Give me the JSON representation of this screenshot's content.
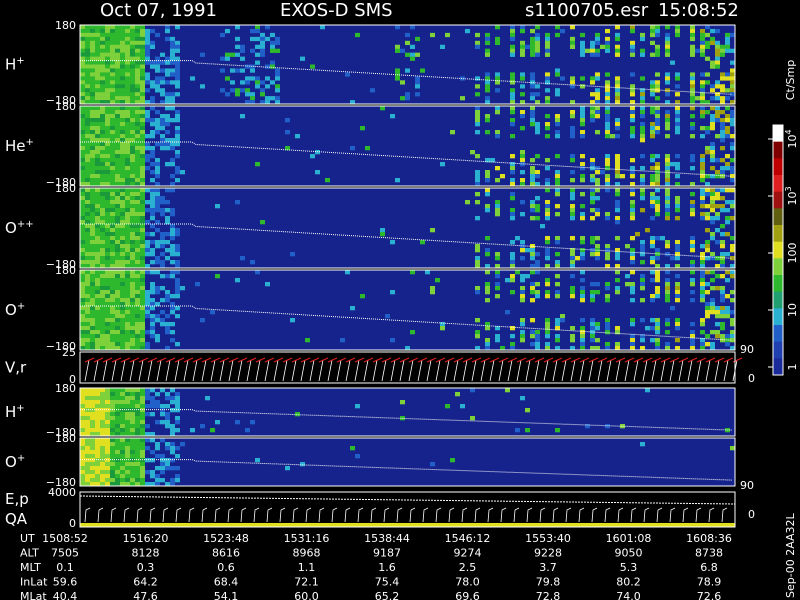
{
  "header": {
    "date": "Oct 07, 1991",
    "instrument": "EXOS-D SMS",
    "file": "s1100705.esr",
    "time": "15:08:52"
  },
  "panels": [
    {
      "label": "H",
      "sup": "+",
      "top": "180",
      "bottom": "−180"
    },
    {
      "label": "He",
      "sup": "+",
      "top": "180",
      "bottom": "−180"
    },
    {
      "label": "O",
      "sup": "++",
      "top": "180",
      "bottom": "−180"
    },
    {
      "label": "O",
      "sup": "+",
      "top": "180",
      "bottom": "−180",
      "right_top": "90",
      "right_bottom": "0"
    },
    {
      "label": "V,r",
      "top": "25",
      "bottom": "0"
    },
    {
      "label": "H",
      "sup": "+",
      "top": "180",
      "bottom": "−180"
    },
    {
      "label": "O",
      "sup": "+",
      "top": "180",
      "bottom": "−180",
      "right_top": "90",
      "right_bottom": "0"
    },
    {
      "label": "E,p",
      "label2": "QA",
      "top": "4000",
      "bottom": "0"
    }
  ],
  "colorbar": {
    "title": "Ct/Smp",
    "ticks": [
      {
        "value": 1,
        "label": "1"
      },
      {
        "value": 10,
        "label": "10"
      },
      {
        "value": 100,
        "label": "100"
      },
      {
        "value": 1000,
        "base": "10",
        "exp": "3"
      },
      {
        "value": 10000,
        "base": "10",
        "exp": "4"
      }
    ]
  },
  "footer": {
    "rows": [
      {
        "label": "UT",
        "cells": [
          "1508:52",
          "1516:20",
          "1523:48",
          "1531:16",
          "1538:44",
          "1546:12",
          "1553:40",
          "1601:08",
          "1608:36"
        ]
      },
      {
        "label": "ALT",
        "cells": [
          "7505",
          "8128",
          "8616",
          "8968",
          "9187",
          "9274",
          "9228",
          "9050",
          "8738"
        ]
      },
      {
        "label": "MLT",
        "cells": [
          "0.1",
          "0.3",
          "0.6",
          "1.1",
          "1.6",
          "2.5",
          "3.7",
          "5.3",
          "6.8"
        ]
      },
      {
        "label": "InLat",
        "cells": [
          "59.6",
          "64.2",
          "68.4",
          "72.1",
          "75.4",
          "78.0",
          "79.8",
          "80.2",
          "78.9"
        ]
      },
      {
        "label": "MLat",
        "cells": [
          "40.4",
          "47.6",
          "54.1",
          "60.0",
          "65.2",
          "69.6",
          "72.8",
          "74.0",
          "72.6"
        ]
      }
    ]
  },
  "side_label": "Sep-00  2AA32L"
}
